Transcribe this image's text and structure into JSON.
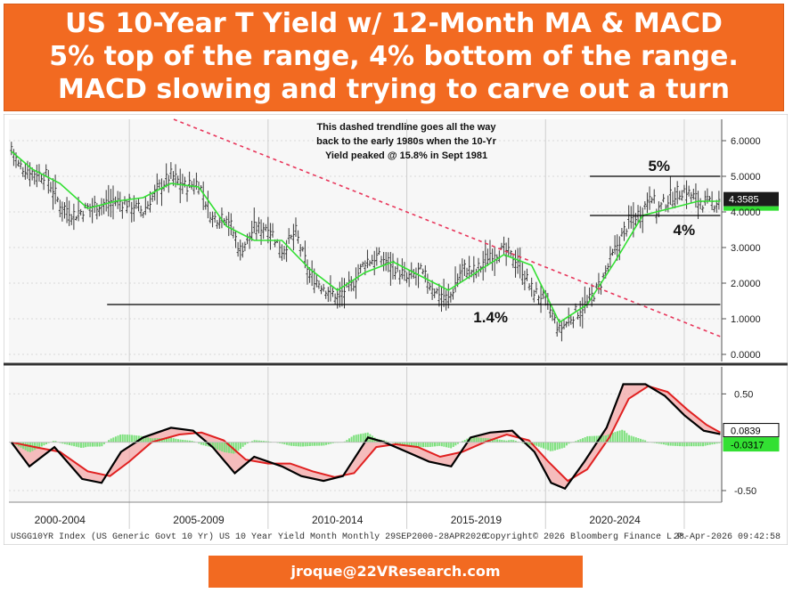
{
  "header": {
    "title_lines": [
      "US 10-Year T Yield w/ 12-Month MA & MACD",
      "5% top of the range, 4% bottom of the range.",
      "MACD slowing and trying to carve out a turn"
    ]
  },
  "chart_data": [
    {
      "type": "line",
      "name": "yield-panel",
      "x_unit": "year",
      "ylim": [
        -0.2,
        6.6
      ],
      "y_ticks": [
        "6.0000",
        "5.0000",
        "4.0000",
        "3.0000",
        "2.0000",
        "1.0000",
        "0.0000"
      ],
      "y_tick_values": [
        6,
        5,
        4,
        3,
        2,
        1,
        0
      ],
      "last_value_label": "4.3585",
      "last_value": 4.3585,
      "series": [
        {
          "kind": "range-bars",
          "x": [
            2000.75,
            2001.0,
            2001.5,
            2002.0,
            2002.5,
            2003.0,
            2003.5,
            2004.0,
            2004.5,
            2005.0,
            2005.5,
            2006.0,
            2006.5,
            2007.0,
            2007.5,
            2008.0,
            2008.5,
            2009.0,
            2009.5,
            2010.0,
            2010.5,
            2011.0,
            2011.5,
            2012.0,
            2012.5,
            2013.0,
            2013.5,
            2014.0,
            2014.5,
            2015.0,
            2015.5,
            2016.0,
            2016.5,
            2017.0,
            2017.5,
            2018.0,
            2018.5,
            2019.0,
            2019.5,
            2020.0,
            2020.5,
            2021.0,
            2021.5,
            2022.0,
            2022.5,
            2023.0,
            2023.5,
            2023.8,
            2024.0,
            2024.5,
            2025.0,
            2025.5,
            2026.0,
            2026.3
          ],
          "values": [
            5.8,
            5.3,
            5.1,
            5.0,
            4.2,
            3.9,
            4.1,
            4.2,
            4.3,
            4.2,
            4.0,
            4.6,
            5.0,
            4.7,
            4.8,
            3.8,
            3.9,
            2.9,
            3.5,
            3.6,
            2.9,
            3.4,
            2.2,
            1.9,
            1.6,
            1.9,
            2.6,
            2.7,
            2.5,
            2.1,
            2.3,
            1.8,
            1.5,
            2.4,
            2.3,
            2.8,
            2.9,
            2.6,
            1.8,
            1.5,
            0.65,
            1.1,
            1.4,
            2.0,
            2.9,
            3.7,
            4.0,
            4.6,
            4.0,
            4.4,
            4.6,
            4.3,
            4.2,
            4.3585
          ]
        },
        {
          "name": "12-Month MA",
          "color": "#33e033",
          "x": [
            2000.75,
            2001.5,
            2002.5,
            2003.5,
            2004.5,
            2005.5,
            2006.5,
            2007.5,
            2008.5,
            2009.5,
            2010.5,
            2011.5,
            2012.5,
            2013.5,
            2014.5,
            2015.5,
            2016.5,
            2017.5,
            2018.5,
            2019.5,
            2020.5,
            2021.5,
            2022.5,
            2023.5,
            2024.5,
            2025.5,
            2026.3
          ],
          "values": [
            5.7,
            5.2,
            4.8,
            4.1,
            4.3,
            4.4,
            4.8,
            4.7,
            3.6,
            3.2,
            3.2,
            2.4,
            1.8,
            2.3,
            2.6,
            2.2,
            1.8,
            2.3,
            2.8,
            2.5,
            0.9,
            1.4,
            2.6,
            3.9,
            4.1,
            4.3,
            4.3
          ]
        }
      ],
      "annotations": [
        {
          "text": "This dashed trendline goes all the way",
          "kind": "note"
        },
        {
          "text": "back to the early 1980s when the 10-Yr",
          "kind": "note"
        },
        {
          "text": "Yield peaked @ 15.8% in Sept 1981",
          "kind": "note"
        },
        {
          "text": "5%",
          "kind": "level",
          "value": 5.0
        },
        {
          "text": "4%",
          "kind": "level",
          "value": 3.9
        },
        {
          "text": "1.4%",
          "kind": "level",
          "value": 1.4
        }
      ],
      "trendline": {
        "style": "dashed",
        "color": "#e8355a",
        "from": [
          2006.6,
          6.6
        ],
        "to": [
          2026.3,
          0.5
        ]
      },
      "support_resistance": [
        {
          "value": 5.0,
          "x_from": 2021.6,
          "x_to": 2026.3
        },
        {
          "value": 3.9,
          "x_from": 2021.6,
          "x_to": 2026.3
        },
        {
          "value": 1.4,
          "x_from": 2004.2,
          "x_to": 2026.3
        }
      ],
      "grid": true
    },
    {
      "type": "line",
      "name": "macd-panel",
      "ylim": [
        -0.62,
        0.78
      ],
      "y_ticks": [
        "0.50",
        "-0.50"
      ],
      "y_tick_values": [
        0.5,
        -0.5
      ],
      "value_labels": [
        {
          "text": "0.0839",
          "value": 0.0839,
          "color": "#000000"
        },
        {
          "text": "-0.0317",
          "value": -0.0317,
          "color": "#33e033"
        }
      ],
      "series": [
        {
          "name": "MACD",
          "color": "#000000",
          "x": [
            2000.75,
            2001.4,
            2002.3,
            2003.3,
            2004.0,
            2004.7,
            2005.5,
            2006.5,
            2007.3,
            2008.0,
            2008.8,
            2009.5,
            2010.5,
            2011.2,
            2012.0,
            2012.7,
            2013.6,
            2014.2,
            2015.0,
            2015.8,
            2016.6,
            2017.3,
            2018.0,
            2018.8,
            2019.6,
            2020.2,
            2020.7,
            2021.4,
            2022.2,
            2022.8,
            2023.6,
            2024.3,
            2025.0,
            2025.7,
            2026.3
          ],
          "values": [
            0.0,
            -0.25,
            -0.05,
            -0.38,
            -0.42,
            -0.1,
            0.05,
            0.15,
            0.12,
            -0.05,
            -0.32,
            -0.15,
            -0.25,
            -0.35,
            -0.4,
            -0.35,
            0.05,
            0.0,
            -0.1,
            -0.2,
            -0.25,
            0.05,
            0.1,
            0.12,
            -0.1,
            -0.42,
            -0.48,
            -0.2,
            0.15,
            0.6,
            0.6,
            0.48,
            0.28,
            0.12,
            0.0839
          ]
        },
        {
          "name": "Signal",
          "color": "#e02020",
          "x": [
            2000.75,
            2001.6,
            2002.5,
            2003.5,
            2004.3,
            2005.0,
            2005.8,
            2006.8,
            2007.6,
            2008.4,
            2009.2,
            2010.0,
            2010.8,
            2011.6,
            2012.4,
            2013.1,
            2013.9,
            2014.6,
            2015.4,
            2016.2,
            2017.0,
            2017.8,
            2018.6,
            2019.4,
            2020.1,
            2020.8,
            2021.5,
            2022.3,
            2023.0,
            2023.7,
            2024.4,
            2025.1,
            2025.8,
            2026.3
          ],
          "values": [
            0.0,
            -0.05,
            -0.1,
            -0.3,
            -0.35,
            -0.2,
            0.0,
            0.08,
            0.1,
            0.02,
            -0.18,
            -0.22,
            -0.22,
            -0.3,
            -0.36,
            -0.32,
            -0.05,
            -0.02,
            -0.05,
            -0.15,
            -0.1,
            0.0,
            0.08,
            0.02,
            -0.2,
            -0.4,
            -0.28,
            0.05,
            0.45,
            0.58,
            0.52,
            0.34,
            0.18,
            0.1
          ]
        }
      ],
      "grid": true
    }
  ],
  "x_axis": {
    "labels": [
      "2000-2004",
      "2005-2009",
      "2010-2014",
      "2015-2019",
      "2020-2024"
    ],
    "label_x": [
      2002.5,
      2007.5,
      2012.5,
      2017.5,
      2022.5
    ],
    "dividers": [
      2005.0,
      2010.0,
      2015.0,
      2020.0,
      2025.0
    ],
    "range": [
      2000.66,
      2026.35
    ]
  },
  "source_line": {
    "left": "USGG10YR Index (US Generic Govt 10 Yr) US 10 Year Yield Month Monthly 29SEP2000-28APR2026",
    "middle": "Copyright© 2026 Bloomberg Finance L.P.",
    "right": "28-Apr-2026 09:42:58"
  },
  "footer": {
    "email": "jroque@22VResearch.com"
  },
  "colors": {
    "banner": "#f26a21",
    "ma": "#33e033",
    "macd": "#000000",
    "signal": "#e02020",
    "trend": "#e8355a"
  }
}
